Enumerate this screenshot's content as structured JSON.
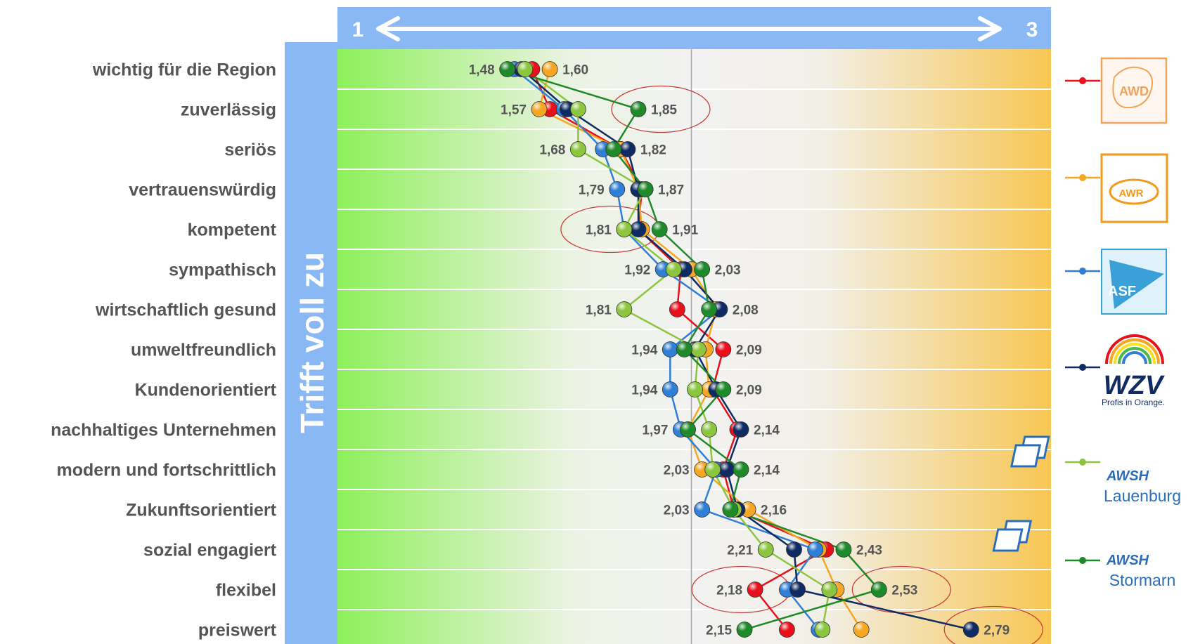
{
  "chart_data": {
    "type": "line",
    "scale": {
      "min": 1,
      "max": 3,
      "min_label": "1",
      "max_label": "3"
    },
    "side_title": "Trifft voll zu",
    "categories": [
      "wichtig für die Region",
      "zuverlässig",
      "seriös",
      "vertrauenswürdig",
      "kompetent",
      "sympathisch",
      "wirtschaftlich gesund",
      "umweltfreundlich",
      "Kundenorientiert",
      "nachhaltiges Unternehmen",
      "modern und fortschrittlich",
      "Zukunftsorientiert",
      "sozial engagiert",
      "flexibel",
      "preiswert"
    ],
    "min_labels": [
      "1,48",
      "1,57",
      "1,68",
      "1,79",
      "1,81",
      "1,92",
      "1,81",
      "1,94",
      "1,94",
      "1,97",
      "2,03",
      "2,03",
      "2,21",
      "2,18",
      "2,15"
    ],
    "max_labels": [
      "1,60",
      "1,85",
      "1,82",
      "1,87",
      "1,91",
      "2,03",
      "2,08",
      "2,09",
      "2,09",
      "2,14",
      "2,14",
      "2,16",
      "2,43",
      "2,53",
      "2,79"
    ],
    "series": [
      {
        "name": "AWD",
        "color": "#e8101a",
        "values": [
          1.55,
          1.6,
          1.8,
          1.86,
          1.85,
          1.97,
          1.96,
          2.09,
          2.06,
          2.13,
          2.09,
          2.12,
          2.38,
          2.18,
          2.27
        ]
      },
      {
        "name": "AWR",
        "color": "#f5a623",
        "values": [
          1.6,
          1.57,
          1.8,
          1.85,
          1.86,
          2.0,
          2.07,
          2.04,
          2.05,
          1.99,
          2.03,
          2.16,
          2.36,
          2.41,
          2.48
        ]
      },
      {
        "name": "ASF",
        "color": "#2f7fd6",
        "values": [
          1.5,
          1.64,
          1.75,
          1.79,
          1.81,
          1.92,
          2.08,
          1.94,
          1.94,
          1.97,
          2.07,
          2.03,
          2.35,
          2.27,
          2.36
        ]
      },
      {
        "name": "WZV",
        "color": "#0f2b63",
        "values": [
          1.52,
          1.65,
          1.82,
          1.85,
          1.85,
          1.98,
          2.08,
          2.01,
          2.07,
          2.14,
          2.1,
          2.13,
          2.29,
          2.3,
          2.79
        ]
      },
      {
        "name": "AWSH Lauenburg",
        "color": "#8cc63f",
        "values": [
          1.53,
          1.68,
          1.68,
          1.87,
          1.81,
          1.95,
          1.81,
          2.02,
          2.01,
          2.05,
          2.06,
          2.12,
          2.21,
          2.39,
          2.37
        ]
      },
      {
        "name": "AWSH Stormarn",
        "color": "#1f8a2a",
        "values": [
          1.48,
          1.85,
          1.78,
          1.87,
          1.91,
          2.03,
          2.05,
          1.98,
          2.09,
          1.99,
          2.14,
          2.11,
          2.43,
          2.53,
          2.15
        ]
      }
    ],
    "highlighted_values": [
      "1,85",
      "1,81",
      "2,18",
      "2,53",
      "2,79"
    ]
  },
  "legend": {
    "logos": [
      {
        "name": "AWD",
        "text": "AWD"
      },
      {
        "name": "AWR",
        "text": "AWR"
      },
      {
        "name": "ASF",
        "text": "ASF"
      },
      {
        "name": "WZV",
        "text": "WZV",
        "tagline": "Profis in Orange."
      },
      {
        "name": "AWSH Lauenburg",
        "text": "AWSH",
        "caption": "Lauenburg"
      },
      {
        "name": "AWSH Stormarn",
        "text": "AWSH",
        "caption": "Stormarn"
      }
    ]
  }
}
